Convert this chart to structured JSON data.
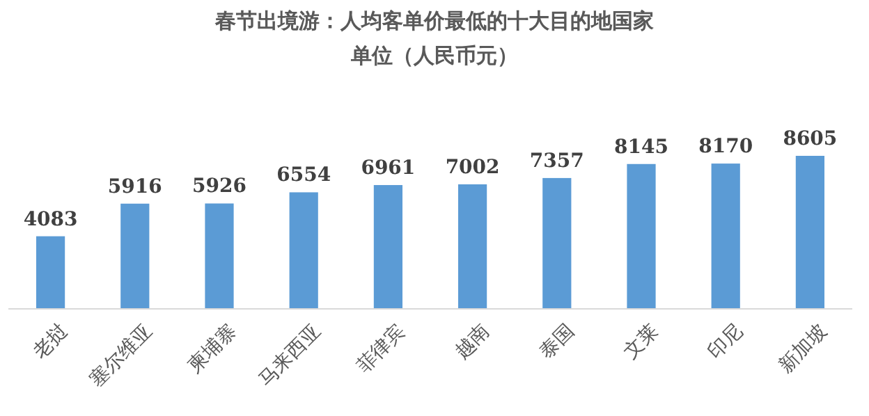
{
  "chart_data": {
    "type": "bar",
    "title": "春节出境游：人均客单价最低的十大目的地国家",
    "subtitle": "单位（人民币元）",
    "categories": [
      "老挝",
      "塞尔维亚",
      "柬埔寨",
      "马来西亚",
      "菲律宾",
      "越南",
      "泰国",
      "文莱",
      "印尼",
      "新加坡"
    ],
    "values": [
      4083,
      5916,
      5926,
      6554,
      6961,
      7002,
      7357,
      8145,
      8170,
      8605
    ],
    "color": "#5b9bd5",
    "data_labels": true
  }
}
